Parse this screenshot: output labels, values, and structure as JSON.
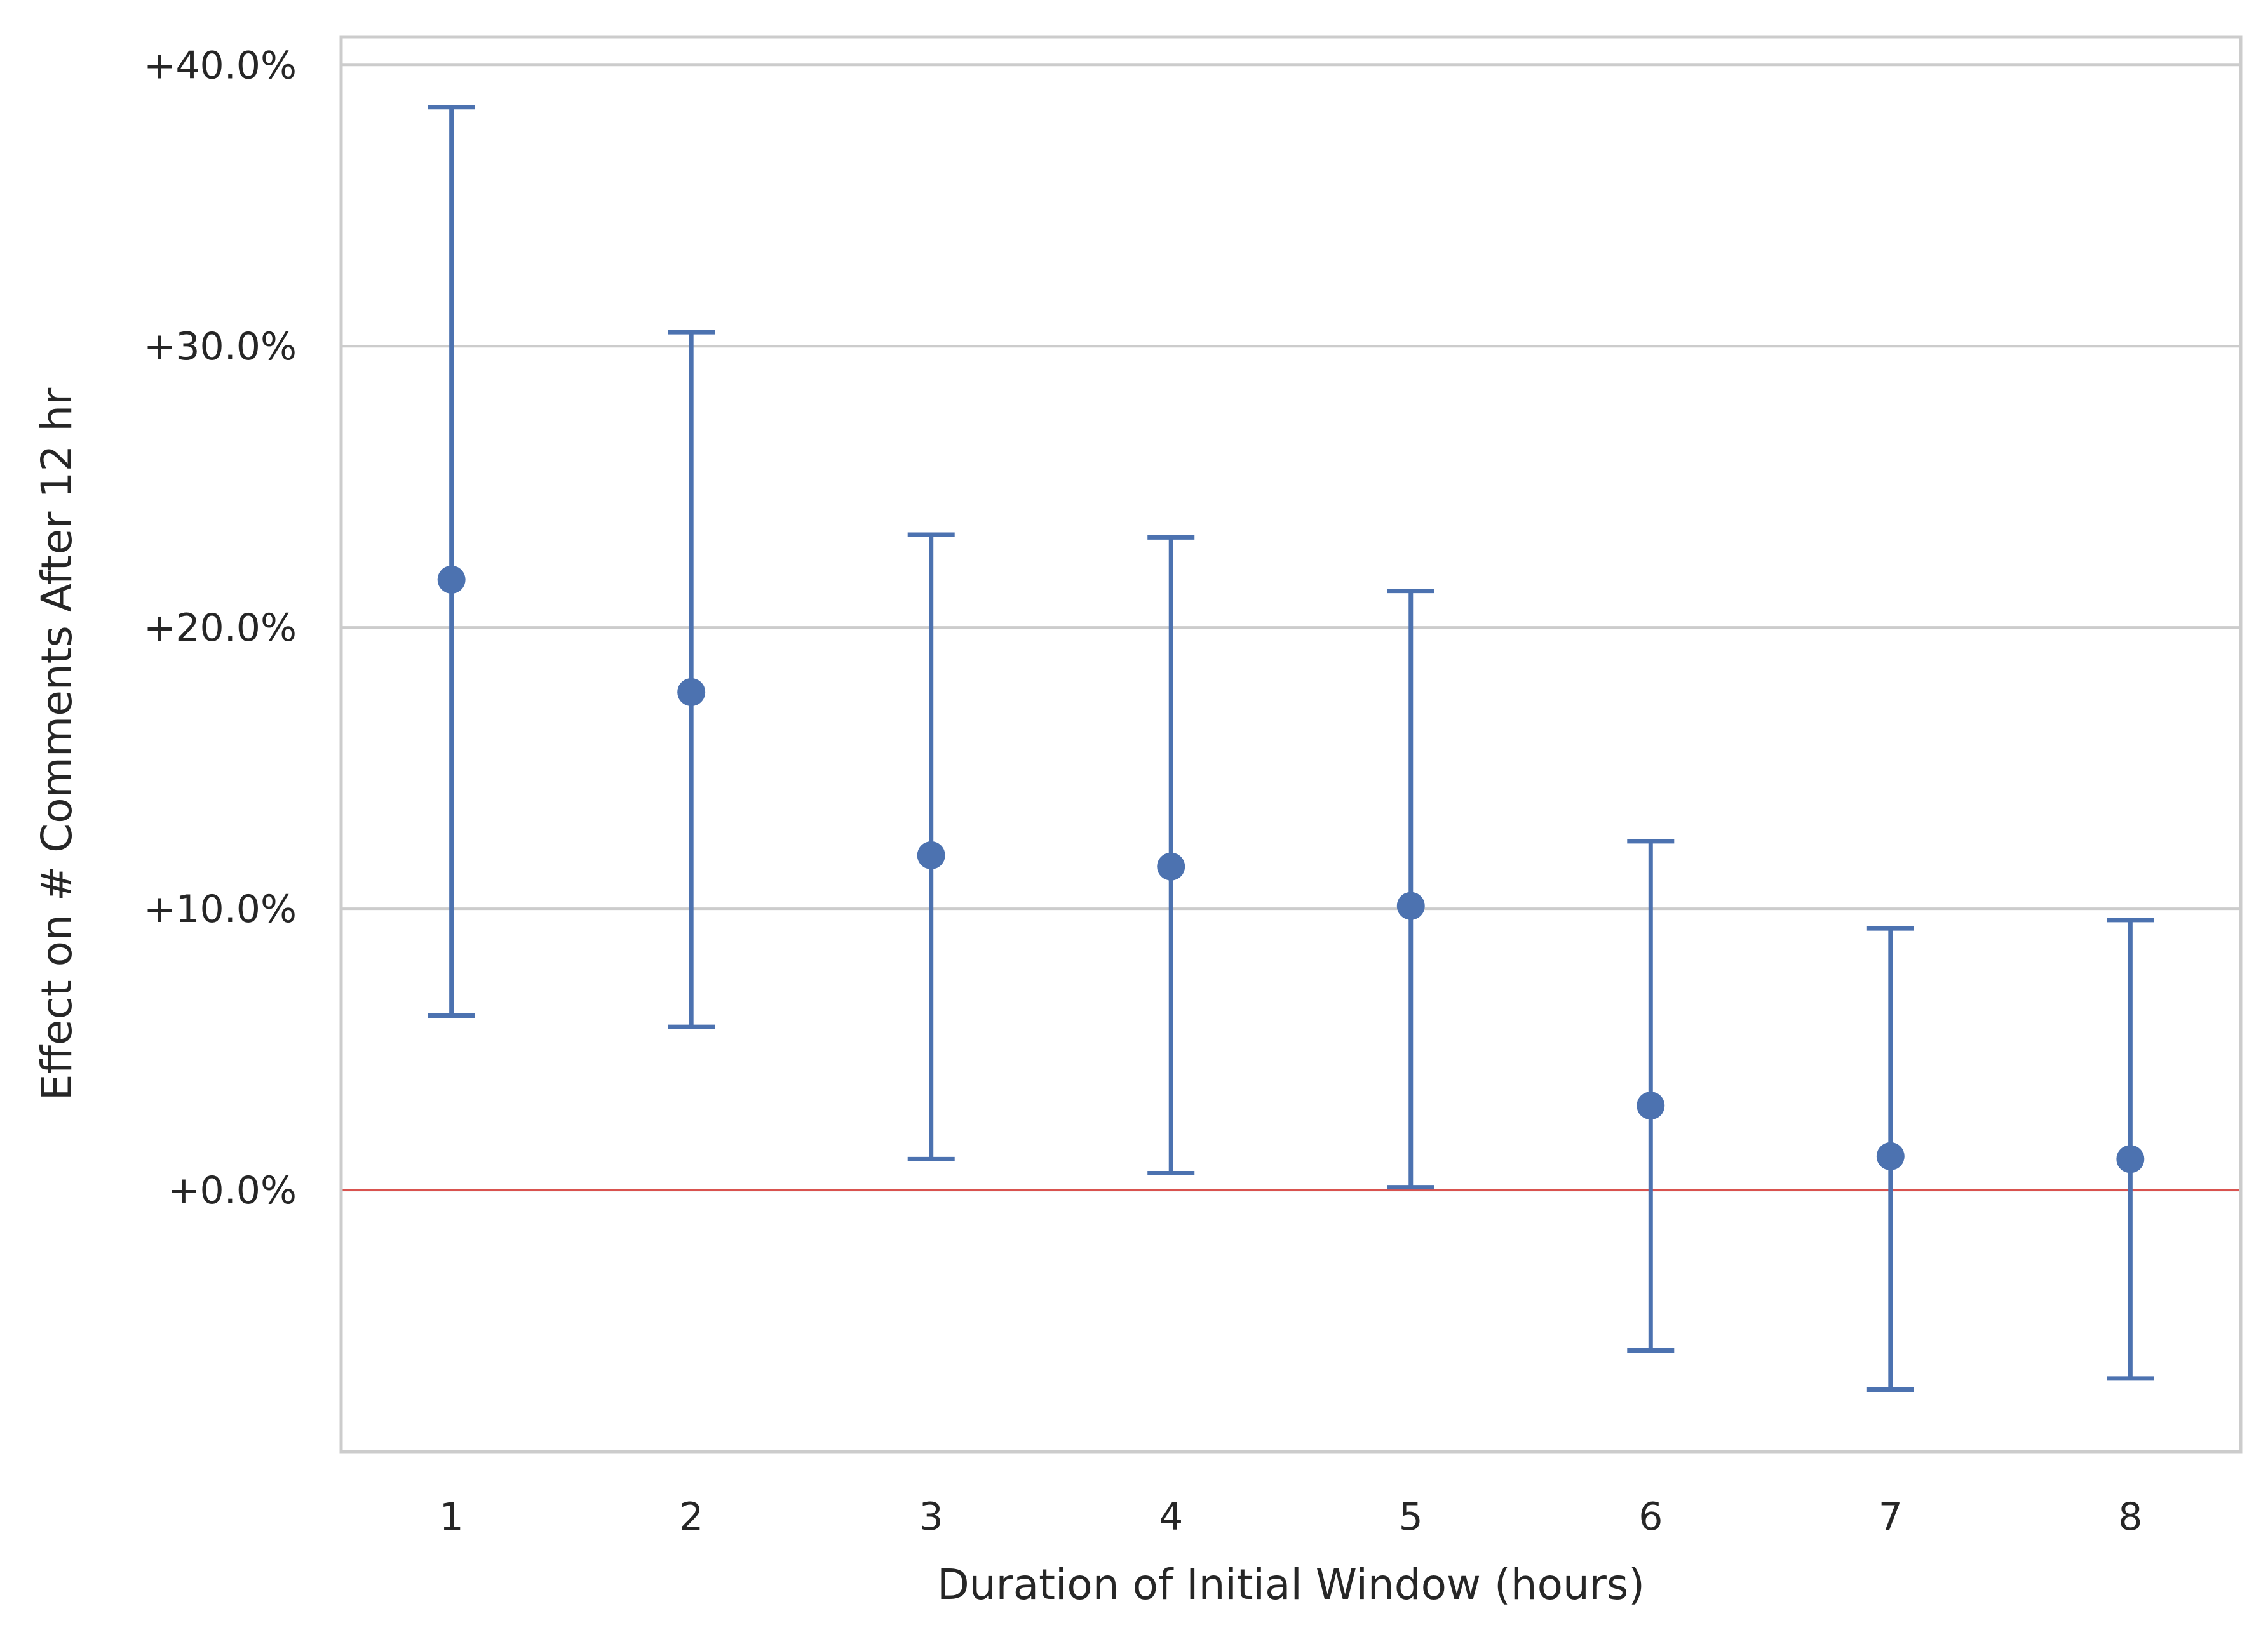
{
  "chart_data": {
    "type": "errorbar",
    "xlabel": "Duration of Initial Window (hours)",
    "ylabel": "Effect on # Comments After 12 hr",
    "categories": [
      "1",
      "2",
      "3",
      "4",
      "5",
      "6",
      "7",
      "8"
    ],
    "y_tick_values": [
      0,
      10,
      20,
      30,
      40
    ],
    "y_tick_labels": [
      "+0.0%",
      "+10.0%",
      "+20.0%",
      "+30.0%",
      "+40.0%"
    ],
    "ylim": [
      -9.3,
      41.0
    ],
    "xlim": [
      0.54,
      8.46
    ],
    "grid": "horizontal",
    "reference_line": {
      "y": 0,
      "color": "#d9534f"
    },
    "series": [
      {
        "color": "#4c72b0",
        "points": [
          {
            "x": "1",
            "y": 21.7,
            "lower": 6.2,
            "upper": 38.5
          },
          {
            "x": "2",
            "y": 17.7,
            "lower": 5.8,
            "upper": 30.5
          },
          {
            "x": "3",
            "y": 11.9,
            "lower": 1.1,
            "upper": 23.3
          },
          {
            "x": "4",
            "y": 11.5,
            "lower": 0.6,
            "upper": 23.2
          },
          {
            "x": "5",
            "y": 10.1,
            "lower": 0.1,
            "upper": 21.3
          },
          {
            "x": "6",
            "y": 3.0,
            "lower": -5.7,
            "upper": 12.4
          },
          {
            "x": "7",
            "y": 1.2,
            "lower": -7.1,
            "upper": 9.3
          },
          {
            "x": "8",
            "y": 1.1,
            "lower": -6.7,
            "upper": 9.6
          }
        ]
      }
    ]
  }
}
